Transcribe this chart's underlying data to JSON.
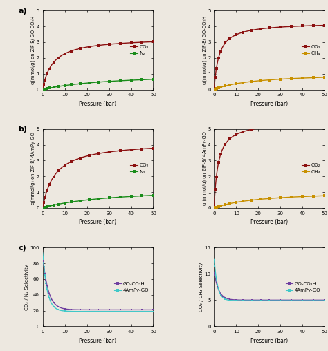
{
  "fig_width": 4.74,
  "fig_height": 5.08,
  "dpi": 100,
  "background_color": "#ede8e0",
  "pressure_max": 50,
  "tick_pressure": [
    0,
    10,
    20,
    30,
    40,
    50
  ],
  "panels": {
    "a_left": {
      "ylabel": "q(mmol/g) on ZIF-8/ GO-CO₂H",
      "xlabel": "Pressure (bar)",
      "ylim": [
        0,
        5
      ],
      "yticks": [
        0,
        1,
        2,
        3,
        4,
        5
      ],
      "co2_color": "#8b1010",
      "n2_color": "#1a8c1a",
      "co2_label": "CO₂",
      "n2_label": "N₂",
      "co2_params": [
        3.3,
        0.22
      ],
      "n2_params": [
        1.05,
        0.032
      ]
    },
    "a_right": {
      "ylabel": "q(mmol/g) on ZIF-8/ GO-CO₂H",
      "xlabel": "Pressure (bar)",
      "ylim": [
        0,
        5
      ],
      "yticks": [
        0,
        1,
        2,
        3,
        4,
        5
      ],
      "co2_color": "#8b1010",
      "ch4_color": "#c89000",
      "co2_label": "CO₂",
      "ch4_label": "CH₄",
      "co2_params": [
        4.25,
        0.45
      ],
      "ch4_params": [
        1.05,
        0.055
      ]
    },
    "b_left": {
      "ylabel": "q(mmol/g) on ZIF-8/ 4AmPy-GO",
      "xlabel": "Pressure (bar)",
      "ylim": [
        0,
        5
      ],
      "yticks": [
        0,
        1,
        2,
        3,
        4,
        5
      ],
      "co2_color": "#8b1010",
      "n2_color": "#1a8c1a",
      "co2_label": "CO₂",
      "n2_label": "N₂",
      "co2_params": [
        4.2,
        0.18
      ],
      "n2_params": [
        1.3,
        0.032
      ]
    },
    "b_right": {
      "ylabel": "q (mmol/g) on ZIF-8/ 4AmPy-GO",
      "xlabel": "Pressure (bar)",
      "ylim": [
        0,
        5
      ],
      "yticks": [
        0,
        1,
        2,
        3,
        4,
        5
      ],
      "co2_color": "#8b1010",
      "ch4_color": "#c89000",
      "co2_label": "CO₂",
      "ch4_label": "CH₄",
      "co2_params": [
        5.5,
        0.55
      ],
      "ch4_params": [
        1.1,
        0.048
      ]
    },
    "c_left": {
      "ylabel": "CO₂ / N₂ Selectivity",
      "xlabel": "Pressure (bar)",
      "ylim": [
        0,
        100
      ],
      "yticks": [
        0,
        20,
        40,
        60,
        80,
        100
      ],
      "go_co2h_color": "#7040a0",
      "ampy_go_color": "#40c8c8",
      "go_co2h_label": "GO-CO₂H",
      "ampy_go_label": "4AmPy-GO",
      "go_co2h_sel_high": 90,
      "go_co2h_sel_low": 21,
      "go_co2h_decay": 2.5,
      "ampy_go_sel_high": 95,
      "ampy_go_sel_low": 19,
      "ampy_go_decay": 2.0
    },
    "c_right": {
      "ylabel": "CO₂ / CH₄ Selectivity",
      "xlabel": "Pressure (bar)",
      "ylim": [
        0,
        15
      ],
      "yticks": [
        0,
        5,
        10,
        15
      ],
      "go_co2h_color": "#7040a0",
      "ampy_go_color": "#40c8c8",
      "go_co2h_label": "GO-CO₂H",
      "ampy_go_label": "4AmPy-GO",
      "go_co2h_sel_high": 10.5,
      "go_co2h_sel_low": 5.0,
      "go_co2h_decay": 2.0,
      "ampy_go_sel_high": 13.0,
      "ampy_go_sel_low": 4.9,
      "ampy_go_decay": 1.5
    }
  }
}
